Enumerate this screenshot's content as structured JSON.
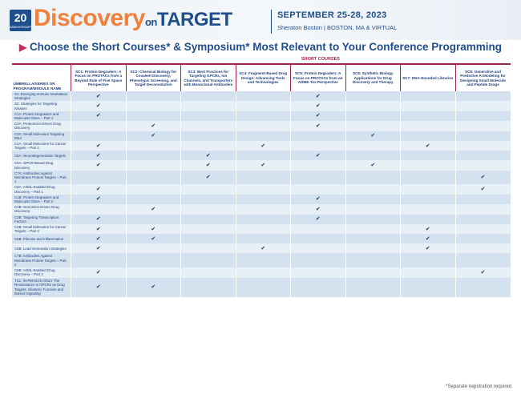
{
  "header": {
    "badge_number": "20",
    "badge_sub": "ANNIVERSARY",
    "logo_main": "Discovery",
    "logo_on": "on",
    "logo_target": "TARGET",
    "dates": "SEPTEMBER 25-28, 2023",
    "venue": "Sheraton Boston | BOSTON, MA & VIRTUAL"
  },
  "banner": {
    "title": "Choose the Short Courses* & Symposium* Most Relevant to Your Conference Programming"
  },
  "table": {
    "group_header": "SHORT COURSES",
    "corner_header": "UMBRELLA/SERIES OR PROGRAM/MODULE NAME",
    "columns": [
      "SC1: Protein Degraders: A Focus on PROTACs from a Beyond Rule of Five Space Perspective",
      "SC2: Chemical Biology for Covalent Discovery, Phenotypic Screening, and Target Deconvolution",
      "SC3: Best Practices for Targeting GPCRs, Ion Channels, and Transporters with Monoclonal Antibodies",
      "SC4: Fragment-Based Drug Design: Advancing Tools and Technologies",
      "SC5: Protein Degraders: A Focus on PROTACs from an ADME-Tox Perspective",
      "SC6: Synthetic Biology Applications for Drug Discovery and Therapy",
      "SC7: DNA-Encoded Libraries",
      "SC8: Generative and Predictive AI Modeling for Designing Small Molecule and Peptide Drugs"
    ],
    "check_symbol": "✔",
    "rows": [
      {
        "name": "S1: Emerging Immune Modulation Strategies",
        "checks": [
          1,
          0,
          0,
          0,
          1,
          0,
          0,
          0
        ]
      },
      {
        "name": "S2: Strategies for Targeting Kinases",
        "checks": [
          1,
          0,
          0,
          0,
          1,
          0,
          0,
          0
        ]
      },
      {
        "name": "C1A: Protein Degraders and Molecular Glues – Part 1",
        "checks": [
          1,
          0,
          0,
          0,
          1,
          0,
          0,
          0
        ]
      },
      {
        "name": "C2A: Proteomics-Driven Drug Discovery",
        "checks": [
          0,
          1,
          0,
          0,
          1,
          0,
          0,
          0
        ]
      },
      {
        "name": "C3A: Small Molecules Targeting RNA",
        "checks": [
          0,
          1,
          0,
          0,
          0,
          1,
          0,
          0
        ]
      },
      {
        "name": "C4A: Small Molecules for Cancer Targets – Part 1",
        "checks": [
          1,
          0,
          0,
          1,
          0,
          0,
          1,
          0
        ]
      },
      {
        "name": "C5A: Neurodegeneration Targets",
        "checks": [
          1,
          0,
          1,
          0,
          1,
          0,
          0,
          0
        ]
      },
      {
        "name": "C6A: GPCR-Based Drug Discovery",
        "checks": [
          1,
          0,
          1,
          1,
          0,
          1,
          0,
          0
        ]
      },
      {
        "name": "C7A: Antibodies Against Membrane Protein Targets – Part 1",
        "checks": [
          0,
          0,
          1,
          0,
          0,
          0,
          0,
          1
        ]
      },
      {
        "name": "C8A: AI/ML-Enabled Drug Discovery – Part 1",
        "checks": [
          1,
          0,
          0,
          0,
          0,
          0,
          0,
          1
        ]
      },
      {
        "name": "C1B: Protein Degraders and Molecular Glues – Part 2",
        "checks": [
          1,
          0,
          0,
          0,
          1,
          0,
          0,
          0
        ]
      },
      {
        "name": "C2B: Genomics-Driven Drug Discovery",
        "checks": [
          0,
          1,
          0,
          0,
          1,
          0,
          0,
          0
        ]
      },
      {
        "name": "C3B: Targeting Transcription Factors",
        "checks": [
          1,
          0,
          0,
          0,
          1,
          0,
          0,
          0
        ]
      },
      {
        "name": "C4B: Small Molecules for Cancer Targets – Part 2",
        "checks": [
          1,
          1,
          0,
          0,
          0,
          0,
          1,
          0
        ]
      },
      {
        "name": "C5B: Fibrosis and Inflammation",
        "checks": [
          1,
          1,
          0,
          0,
          0,
          0,
          1,
          0
        ]
      },
      {
        "name": "C6B: Lead Generation Strategies",
        "checks": [
          1,
          0,
          0,
          1,
          0,
          0,
          1,
          0
        ]
      },
      {
        "name": "C7B: Antibodies Against Membrane Protein Targets – Part 2",
        "checks": [
          0,
          0,
          0,
          0,
          0,
          0,
          0,
          0
        ]
      },
      {
        "name": "C8B: AI/ML-Enabled Drug Discovery – Part 2",
        "checks": [
          1,
          0,
          0,
          0,
          0,
          0,
          0,
          1
        ]
      },
      {
        "name": "TS1: IN-PERSON ONLY The Renaissance in GPCRs as Drug Targets: Allosteric Function and Biased Signaling",
        "checks": [
          1,
          1,
          0,
          0,
          0,
          0,
          0,
          0
        ]
      }
    ]
  },
  "footnote": "*Separate registration required",
  "colors": {
    "navy": "#1f4e8c",
    "orange": "#f0803c",
    "maroon": "#a8204c",
    "row_odd": "#d4e2ef",
    "row_even": "#e7eff7"
  }
}
